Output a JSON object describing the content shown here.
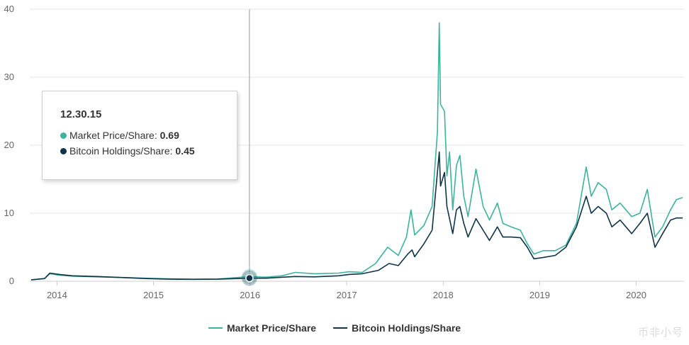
{
  "chart_data": {
    "type": "line",
    "title": "",
    "xlabel": "",
    "ylabel": "",
    "xlim": [
      "2013-09-20",
      "2020-06-30"
    ],
    "ylim": [
      0,
      40
    ],
    "yticks": [
      0,
      10,
      20,
      30,
      40
    ],
    "xticks": [
      {
        "date": "2014-01-01",
        "label": "2014"
      },
      {
        "date": "2015-01-01",
        "label": "2015"
      },
      {
        "date": "2016-01-01",
        "label": "2016"
      },
      {
        "date": "2017-01-01",
        "label": "2017"
      },
      {
        "date": "2018-01-01",
        "label": "2018"
      },
      {
        "date": "2019-01-01",
        "label": "2019"
      },
      {
        "date": "2020-01-01",
        "label": "2020"
      }
    ],
    "grid": "horizontal",
    "legend_position": "bottom-center",
    "series": [
      {
        "name": "Market Price/Share",
        "color": "#3db39e",
        "points": [
          [
            "2013-09-25",
            0.2
          ],
          [
            "2013-11-15",
            0.4
          ],
          [
            "2013-12-05",
            1.1
          ],
          [
            "2014-01-10",
            0.9
          ],
          [
            "2014-03-01",
            0.75
          ],
          [
            "2014-06-01",
            0.65
          ],
          [
            "2014-09-01",
            0.55
          ],
          [
            "2014-12-01",
            0.45
          ],
          [
            "2015-03-01",
            0.35
          ],
          [
            "2015-06-01",
            0.3
          ],
          [
            "2015-09-01",
            0.33
          ],
          [
            "2015-12-30",
            0.69
          ],
          [
            "2016-03-01",
            0.6
          ],
          [
            "2016-05-01",
            0.8
          ],
          [
            "2016-06-20",
            1.3
          ],
          [
            "2016-09-01",
            1.1
          ],
          [
            "2016-12-01",
            1.2
          ],
          [
            "2017-01-10",
            1.4
          ],
          [
            "2017-03-01",
            1.3
          ],
          [
            "2017-04-20",
            2.6
          ],
          [
            "2017-06-05",
            5.0
          ],
          [
            "2017-07-15",
            3.8
          ],
          [
            "2017-08-15",
            6.5
          ],
          [
            "2017-09-01",
            10.5
          ],
          [
            "2017-09-15",
            6.8
          ],
          [
            "2017-10-20",
            8.2
          ],
          [
            "2017-11-20",
            11.0
          ],
          [
            "2017-12-10",
            22.0
          ],
          [
            "2017-12-17",
            38.0
          ],
          [
            "2017-12-22",
            26.0
          ],
          [
            "2018-01-06",
            25.0
          ],
          [
            "2018-01-15",
            15.5
          ],
          [
            "2018-01-25",
            19.0
          ],
          [
            "2018-02-06",
            10.5
          ],
          [
            "2018-02-20",
            17.0
          ],
          [
            "2018-03-05",
            18.5
          ],
          [
            "2018-03-20",
            12.5
          ],
          [
            "2018-04-05",
            9.5
          ],
          [
            "2018-05-05",
            16.5
          ],
          [
            "2018-06-01",
            11.0
          ],
          [
            "2018-06-25",
            9.0
          ],
          [
            "2018-07-25",
            11.5
          ],
          [
            "2018-08-15",
            8.5
          ],
          [
            "2018-09-15",
            8.0
          ],
          [
            "2018-10-20",
            7.5
          ],
          [
            "2018-11-15",
            5.5
          ],
          [
            "2018-12-10",
            4.0
          ],
          [
            "2019-01-15",
            4.5
          ],
          [
            "2019-03-01",
            4.5
          ],
          [
            "2019-04-10",
            5.3
          ],
          [
            "2019-05-20",
            8.5
          ],
          [
            "2019-06-26",
            16.8
          ],
          [
            "2019-07-15",
            12.5
          ],
          [
            "2019-08-10",
            14.5
          ],
          [
            "2019-09-10",
            13.5
          ],
          [
            "2019-10-01",
            10.5
          ],
          [
            "2019-11-01",
            11.5
          ],
          [
            "2019-12-15",
            9.5
          ],
          [
            "2020-01-15",
            10.0
          ],
          [
            "2020-02-12",
            13.5
          ],
          [
            "2020-03-12",
            6.5
          ],
          [
            "2020-04-10",
            8.0
          ],
          [
            "2020-05-10",
            10.5
          ],
          [
            "2020-06-01",
            12.0
          ],
          [
            "2020-06-25",
            12.3
          ]
        ]
      },
      {
        "name": "Bitcoin Holdings/Share",
        "color": "#0f3347",
        "points": [
          [
            "2013-09-25",
            0.2
          ],
          [
            "2013-11-15",
            0.4
          ],
          [
            "2013-12-05",
            1.2
          ],
          [
            "2014-01-10",
            1.0
          ],
          [
            "2014-03-01",
            0.8
          ],
          [
            "2014-06-01",
            0.7
          ],
          [
            "2014-09-01",
            0.55
          ],
          [
            "2014-12-01",
            0.4
          ],
          [
            "2015-03-01",
            0.3
          ],
          [
            "2015-06-01",
            0.28
          ],
          [
            "2015-09-01",
            0.3
          ],
          [
            "2015-12-30",
            0.45
          ],
          [
            "2016-03-01",
            0.45
          ],
          [
            "2016-06-20",
            0.7
          ],
          [
            "2016-09-01",
            0.65
          ],
          [
            "2016-12-01",
            0.8
          ],
          [
            "2017-01-10",
            1.0
          ],
          [
            "2017-03-01",
            1.1
          ],
          [
            "2017-05-01",
            1.6
          ],
          [
            "2017-06-10",
            2.6
          ],
          [
            "2017-07-15",
            2.3
          ],
          [
            "2017-08-20",
            4.0
          ],
          [
            "2017-09-05",
            4.6
          ],
          [
            "2017-09-15",
            3.6
          ],
          [
            "2017-10-20",
            5.5
          ],
          [
            "2017-11-20",
            7.5
          ],
          [
            "2017-12-17",
            19.0
          ],
          [
            "2017-12-22",
            14.0
          ],
          [
            "2018-01-06",
            16.0
          ],
          [
            "2018-01-15",
            11.0
          ],
          [
            "2018-02-06",
            7.0
          ],
          [
            "2018-02-20",
            10.5
          ],
          [
            "2018-03-05",
            11.0
          ],
          [
            "2018-03-20",
            8.5
          ],
          [
            "2018-04-05",
            6.5
          ],
          [
            "2018-05-05",
            9.2
          ],
          [
            "2018-06-01",
            7.5
          ],
          [
            "2018-06-25",
            6.0
          ],
          [
            "2018-07-25",
            8.0
          ],
          [
            "2018-08-15",
            6.5
          ],
          [
            "2018-09-15",
            6.5
          ],
          [
            "2018-10-20",
            6.4
          ],
          [
            "2018-11-15",
            5.0
          ],
          [
            "2018-12-10",
            3.3
          ],
          [
            "2019-01-15",
            3.5
          ],
          [
            "2019-03-01",
            3.8
          ],
          [
            "2019-04-10",
            5.0
          ],
          [
            "2019-05-20",
            8.0
          ],
          [
            "2019-06-26",
            12.5
          ],
          [
            "2019-07-15",
            10.0
          ],
          [
            "2019-08-10",
            11.0
          ],
          [
            "2019-09-10",
            10.0
          ],
          [
            "2019-10-01",
            8.0
          ],
          [
            "2019-11-01",
            9.0
          ],
          [
            "2019-12-15",
            7.0
          ],
          [
            "2020-01-15",
            8.5
          ],
          [
            "2020-02-12",
            10.0
          ],
          [
            "2020-03-12",
            5.0
          ],
          [
            "2020-04-10",
            7.0
          ],
          [
            "2020-05-10",
            9.0
          ],
          [
            "2020-06-01",
            9.3
          ],
          [
            "2020-06-25",
            9.3
          ]
        ]
      }
    ],
    "tooltip": {
      "date": "12.30.15",
      "x": "2015-12-30",
      "rows": [
        {
          "label": "Market Price/Share:",
          "value": "0.69",
          "color": "#3db39e"
        },
        {
          "label": "Bitcoin Holdings/Share:",
          "value": "0.45",
          "color": "#0f3347"
        }
      ]
    }
  },
  "watermark": "币非小号"
}
